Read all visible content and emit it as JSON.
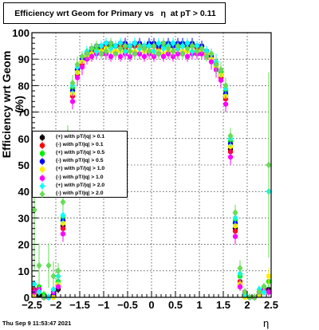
{
  "title": "Efficiency wrt Geom for Primary vs   η  at pT > 0.11",
  "footer": "Thu Sep  9 11:53:47 2021",
  "colors": {
    "frame": "#000000",
    "errorbar": "#33cc33"
  },
  "chart_data": {
    "type": "scatter",
    "title": "Efficiency wrt Geom for Primary vs   η  at pT > 0.11",
    "xlabel": "η",
    "ylabel": "Efficiency wrt Geom (%)",
    "xlim": [
      -2.5,
      2.5
    ],
    "ylim": [
      0,
      100
    ],
    "xticks": [
      "−2.5",
      "−2",
      "−1.5",
      "−1",
      "−0.5",
      "0",
      "0.5",
      "1",
      "1.5",
      "2",
      "2.5"
    ],
    "yticks": [
      "0",
      "10",
      "20",
      "30",
      "40",
      "50",
      "60",
      "70",
      "80",
      "90",
      "100"
    ],
    "grid": true,
    "legend_position": "left-middle",
    "series": [
      {
        "name": "(+) with pT/|q| > 0.1",
        "color": "#000000",
        "marker": "circle",
        "x": [
          -2.45,
          -2.35,
          -2.25,
          -2.15,
          -2.05,
          -1.95,
          -1.85,
          -1.75,
          -1.65,
          -1.55,
          -1.45,
          -1.35,
          -1.25,
          -1.15,
          -1.05,
          -0.95,
          -0.85,
          -0.75,
          -0.65,
          -0.55,
          -0.45,
          -0.35,
          -0.25,
          -0.15,
          -0.05,
          0.05,
          0.15,
          0.25,
          0.35,
          0.45,
          0.55,
          0.65,
          0.75,
          0.85,
          0.95,
          1.05,
          1.15,
          1.25,
          1.35,
          1.45,
          1.55,
          1.65,
          1.75,
          1.85,
          1.95,
          2.05,
          2.15,
          2.25,
          2.35,
          2.45
        ],
        "y": [
          2,
          1,
          0,
          0,
          1,
          3,
          27,
          57,
          77,
          85,
          89,
          92,
          93,
          94,
          95,
          95,
          95,
          95,
          95,
          95,
          95,
          95,
          95,
          95,
          95,
          95,
          95,
          95,
          95,
          95,
          95,
          95,
          95,
          95,
          95,
          94,
          93,
          91,
          88,
          84,
          76,
          56,
          26,
          4,
          1,
          0,
          0,
          1,
          2,
          3
        ]
      },
      {
        "name": "(-) with pT/|q| > 0.1",
        "color": "#ff0000",
        "marker": "circle",
        "x": [
          -2.45,
          -2.35,
          -2.25,
          -2.15,
          -2.05,
          -1.95,
          -1.85,
          -1.75,
          -1.65,
          -1.55,
          -1.45,
          -1.35,
          -1.25,
          -1.15,
          -1.05,
          -0.95,
          -0.85,
          -0.75,
          -0.65,
          -0.55,
          -0.45,
          -0.35,
          -0.25,
          -0.15,
          -0.05,
          0.05,
          0.15,
          0.25,
          0.35,
          0.45,
          0.55,
          0.65,
          0.75,
          0.85,
          0.95,
          1.05,
          1.15,
          1.25,
          1.35,
          1.45,
          1.55,
          1.65,
          1.75,
          1.85,
          1.95,
          2.05,
          2.15,
          2.25,
          2.35,
          2.45
        ],
        "y": [
          3,
          2,
          0,
          0,
          2,
          5,
          26,
          56,
          76,
          84,
          88,
          91,
          93,
          94,
          94,
          95,
          95,
          95,
          95,
          94,
          95,
          95,
          95,
          94,
          95,
          95,
          94,
          95,
          95,
          95,
          94,
          95,
          95,
          95,
          94,
          94,
          92,
          90,
          87,
          83,
          75,
          55,
          25,
          6,
          2,
          0,
          0,
          2,
          3,
          2
        ]
      },
      {
        "name": "(+) with pT/|q| > 0.5",
        "color": "#00ee00",
        "marker": "circle",
        "x": [
          -2.45,
          -2.35,
          -2.25,
          -2.15,
          -2.05,
          -1.95,
          -1.85,
          -1.75,
          -1.65,
          -1.55,
          -1.45,
          -1.35,
          -1.25,
          -1.15,
          -1.05,
          -0.95,
          -0.85,
          -0.75,
          -0.65,
          -0.55,
          -0.45,
          -0.35,
          -0.25,
          -0.15,
          -0.05,
          0.05,
          0.15,
          0.25,
          0.35,
          0.45,
          0.55,
          0.65,
          0.75,
          0.85,
          0.95,
          1.05,
          1.15,
          1.25,
          1.35,
          1.45,
          1.55,
          1.65,
          1.75,
          1.85,
          1.95,
          2.05,
          2.15,
          2.25,
          2.35,
          2.45
        ],
        "y": [
          1,
          4,
          1,
          0,
          1,
          6,
          30,
          60,
          79,
          86,
          90,
          92,
          94,
          94,
          95,
          96,
          95,
          95,
          96,
          95,
          95,
          96,
          95,
          95,
          95,
          96,
          95,
          95,
          95,
          96,
          95,
          95,
          96,
          95,
          95,
          94,
          93,
          91,
          88,
          85,
          78,
          59,
          29,
          8,
          1,
          0,
          0,
          1,
          4,
          6
        ]
      },
      {
        "name": "(-) with pT/|q| > 0.5",
        "color": "#0000ff",
        "marker": "circle",
        "x": [
          -2.45,
          -2.35,
          -2.25,
          -2.15,
          -2.05,
          -1.95,
          -1.85,
          -1.75,
          -1.65,
          -1.55,
          -1.45,
          -1.35,
          -1.25,
          -1.15,
          -1.05,
          -0.95,
          -0.85,
          -0.75,
          -0.65,
          -0.55,
          -0.45,
          -0.35,
          -0.25,
          -0.15,
          -0.05,
          0.05,
          0.15,
          0.25,
          0.35,
          0.45,
          0.55,
          0.65,
          0.75,
          0.85,
          0.95,
          1.05,
          1.15,
          1.25,
          1.35,
          1.45,
          1.55,
          1.65,
          1.75,
          1.85,
          1.95,
          2.05,
          2.15,
          2.25,
          2.35,
          2.45
        ],
        "y": [
          2,
          3,
          0,
          0,
          1,
          4,
          29,
          59,
          78,
          86,
          90,
          92,
          94,
          95,
          95,
          96,
          96,
          95,
          96,
          96,
          95,
          96,
          96,
          95,
          96,
          96,
          95,
          96,
          96,
          95,
          96,
          96,
          95,
          96,
          95,
          95,
          93,
          91,
          88,
          84,
          77,
          58,
          28,
          5,
          1,
          0,
          0,
          1,
          3,
          2
        ]
      },
      {
        "name": "(+) with pT/|q| > 1.0",
        "color": "#ffee00",
        "marker": "circle",
        "x": [
          -2.45,
          -2.35,
          -2.25,
          -2.15,
          -2.05,
          -1.95,
          -1.85,
          -1.75,
          -1.65,
          -1.55,
          -1.45,
          -1.35,
          -1.25,
          -1.15,
          -1.05,
          -0.95,
          -0.85,
          -0.75,
          -0.65,
          -0.55,
          -0.45,
          -0.35,
          -0.25,
          -0.15,
          -0.05,
          0.05,
          0.15,
          0.25,
          0.35,
          0.45,
          0.55,
          0.65,
          0.75,
          0.85,
          0.95,
          1.05,
          1.15,
          1.25,
          1.35,
          1.45,
          1.55,
          1.65,
          1.75,
          1.85,
          1.95,
          2.05,
          2.15,
          2.25,
          2.35,
          2.45
        ],
        "y": [
          1,
          2,
          0,
          0,
          0,
          5,
          28,
          58,
          77,
          85,
          89,
          91,
          92,
          93,
          93,
          94,
          93,
          93,
          93,
          92,
          93,
          93,
          92,
          93,
          93,
          92,
          93,
          92,
          93,
          93,
          92,
          93,
          93,
          92,
          93,
          93,
          92,
          90,
          87,
          84,
          76,
          57,
          27,
          5,
          0,
          0,
          0,
          1,
          2,
          8
        ]
      },
      {
        "name": "(-) with pT/|q| > 1.0",
        "color": "#ff00ff",
        "marker": "circle",
        "x": [
          -2.45,
          -2.35,
          -2.25,
          -2.15,
          -2.05,
          -1.95,
          -1.85,
          -1.75,
          -1.65,
          -1.55,
          -1.45,
          -1.35,
          -1.25,
          -1.15,
          -1.05,
          -0.95,
          -0.85,
          -0.75,
          -0.65,
          -0.55,
          -0.45,
          -0.35,
          -0.25,
          -0.15,
          -0.05,
          0.05,
          0.15,
          0.25,
          0.35,
          0.45,
          0.55,
          0.65,
          0.75,
          0.85,
          0.95,
          1.05,
          1.15,
          1.25,
          1.35,
          1.45,
          1.55,
          1.65,
          1.75,
          1.85,
          1.95,
          2.05,
          2.15,
          2.25,
          2.35,
          2.45
        ],
        "y": [
          2,
          3,
          0,
          0,
          2,
          4,
          24,
          54,
          74,
          83,
          87,
          90,
          91,
          92,
          92,
          92,
          91,
          92,
          91,
          92,
          91,
          92,
          92,
          91,
          92,
          91,
          92,
          91,
          92,
          91,
          92,
          92,
          91,
          92,
          92,
          92,
          91,
          89,
          86,
          82,
          73,
          53,
          23,
          4,
          2,
          0,
          0,
          2,
          3,
          2
        ]
      },
      {
        "name": "(+) with pT/|q| > 2.0",
        "color": "#00ffff",
        "marker": "diamond",
        "x": [
          -2.45,
          -2.35,
          -2.25,
          -2.15,
          -2.05,
          -1.95,
          -1.85,
          -1.75,
          -1.65,
          -1.55,
          -1.45,
          -1.35,
          -1.25,
          -1.15,
          -1.05,
          -0.95,
          -0.85,
          -0.75,
          -0.65,
          -0.55,
          -0.45,
          -0.35,
          -0.25,
          -0.15,
          -0.05,
          0.05,
          0.15,
          0.25,
          0.35,
          0.45,
          0.55,
          0.65,
          0.75,
          0.85,
          0.95,
          1.05,
          1.15,
          1.25,
          1.35,
          1.45,
          1.55,
          1.65,
          1.75,
          1.85,
          1.95,
          2.05,
          2.15,
          2.25,
          2.35,
          2.45
        ],
        "y": [
          5,
          2,
          0,
          0,
          3,
          8,
          31,
          61,
          80,
          87,
          91,
          93,
          94,
          93,
          95,
          96,
          94,
          95,
          96,
          93,
          95,
          96,
          94,
          95,
          95,
          93,
          96,
          94,
          95,
          96,
          94,
          95,
          96,
          93,
          95,
          94,
          93,
          92,
          89,
          86,
          79,
          60,
          30,
          9,
          1,
          0,
          0,
          3,
          2,
          40
        ]
      },
      {
        "name": "(-) with pT/|q| > 2.0",
        "color": "#66dd55",
        "marker": "diamond",
        "x": [
          -2.45,
          -2.35,
          -2.25,
          -2.15,
          -2.05,
          -1.95,
          -1.85,
          -1.75,
          -1.65,
          -1.55,
          -1.45,
          -1.35,
          -1.25,
          -1.15,
          -1.05,
          -0.95,
          -0.85,
          -0.75,
          -0.65,
          -0.55,
          -0.45,
          -0.35,
          -0.25,
          -0.15,
          -0.05,
          0.05,
          0.15,
          0.25,
          0.35,
          0.45,
          0.55,
          0.65,
          0.75,
          0.85,
          0.95,
          1.05,
          1.15,
          1.25,
          1.35,
          1.45,
          1.55,
          1.65,
          1.75,
          1.85,
          1.95,
          2.05,
          2.15,
          2.25,
          2.35,
          2.45
        ],
        "y": [
          33,
          12,
          0,
          12,
          8,
          10,
          36,
          62,
          81,
          88,
          91,
          92,
          94,
          95,
          92,
          93,
          96,
          92,
          94,
          95,
          93,
          92,
          95,
          94,
          93,
          95,
          92,
          96,
          94,
          93,
          95,
          92,
          94,
          95,
          93,
          94,
          91,
          92,
          88,
          86,
          80,
          61,
          32,
          11,
          2,
          0,
          0,
          2,
          4,
          50
        ]
      }
    ]
  }
}
